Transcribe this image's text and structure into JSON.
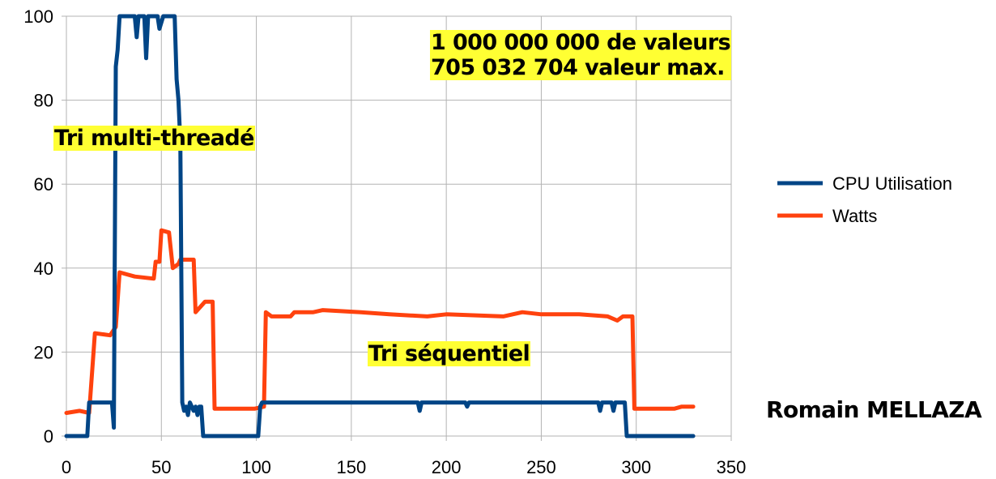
{
  "chart_data": {
    "type": "line",
    "title": "",
    "xlabel": "",
    "ylabel": "",
    "xlim": [
      0,
      350
    ],
    "ylim": [
      0,
      100
    ],
    "x_ticks": [
      0,
      50,
      100,
      150,
      200,
      250,
      300,
      350
    ],
    "y_ticks": [
      0,
      20,
      40,
      60,
      80,
      100
    ],
    "grid": true,
    "legend_position": "right",
    "series": [
      {
        "name": "CPU Utilisation",
        "color": "#004586",
        "points": [
          [
            0,
            0
          ],
          [
            11,
            0
          ],
          [
            12,
            8
          ],
          [
            24,
            8
          ],
          [
            25,
            2
          ],
          [
            26,
            88
          ],
          [
            27,
            92
          ],
          [
            28,
            100
          ],
          [
            36,
            100
          ],
          [
            37,
            95
          ],
          [
            38,
            100
          ],
          [
            41,
            100
          ],
          [
            42,
            90
          ],
          [
            43,
            100
          ],
          [
            48,
            100
          ],
          [
            49,
            97
          ],
          [
            51,
            100
          ],
          [
            57,
            100
          ],
          [
            58,
            85
          ],
          [
            59,
            80
          ],
          [
            60,
            70
          ],
          [
            61,
            8
          ],
          [
            62,
            6
          ],
          [
            63,
            7
          ],
          [
            64,
            5
          ],
          [
            65,
            8
          ],
          [
            67,
            6
          ],
          [
            68,
            7
          ],
          [
            69,
            5
          ],
          [
            70,
            7
          ],
          [
            71,
            7
          ],
          [
            72,
            0
          ],
          [
            101,
            0
          ],
          [
            102,
            7
          ],
          [
            103,
            8
          ],
          [
            185,
            8
          ],
          [
            186,
            6
          ],
          [
            187,
            8
          ],
          [
            210,
            8
          ],
          [
            211,
            7
          ],
          [
            212,
            8
          ],
          [
            280,
            8
          ],
          [
            281,
            6
          ],
          [
            282,
            8
          ],
          [
            287,
            8
          ],
          [
            288,
            6
          ],
          [
            289,
            8
          ],
          [
            294,
            8
          ],
          [
            295,
            0
          ],
          [
            330,
            0
          ]
        ]
      },
      {
        "name": "Watts",
        "color": "#ff420e",
        "points": [
          [
            0,
            5.5
          ],
          [
            7,
            6
          ],
          [
            12,
            5.5
          ],
          [
            15,
            24.5
          ],
          [
            23,
            24
          ],
          [
            26,
            26
          ],
          [
            28,
            39
          ],
          [
            32,
            38.5
          ],
          [
            36,
            38
          ],
          [
            46,
            37.5
          ],
          [
            47,
            41.5
          ],
          [
            49,
            41.5
          ],
          [
            50,
            49
          ],
          [
            54,
            48.5
          ],
          [
            56,
            40
          ],
          [
            59,
            41
          ],
          [
            60,
            42
          ],
          [
            67,
            42
          ],
          [
            68,
            29.5
          ],
          [
            71,
            31
          ],
          [
            73,
            32
          ],
          [
            77,
            32
          ],
          [
            78,
            6.5
          ],
          [
            99,
            6.5
          ],
          [
            104,
            7
          ],
          [
            105,
            29.5
          ],
          [
            108,
            28.5
          ],
          [
            118,
            28.5
          ],
          [
            120,
            29.5
          ],
          [
            130,
            29.5
          ],
          [
            135,
            30
          ],
          [
            155,
            29.5
          ],
          [
            170,
            29
          ],
          [
            190,
            28.5
          ],
          [
            200,
            29
          ],
          [
            230,
            28.5
          ],
          [
            240,
            29.5
          ],
          [
            250,
            29
          ],
          [
            270,
            29
          ],
          [
            285,
            28.5
          ],
          [
            290,
            27.5
          ],
          [
            293,
            28.5
          ],
          [
            298,
            28.5
          ],
          [
            299,
            6.5
          ],
          [
            310,
            6.5
          ],
          [
            320,
            6.5
          ],
          [
            324,
            7
          ],
          [
            330,
            7
          ]
        ]
      }
    ]
  },
  "annotations": {
    "count_line1": "1 000 000 000 de valeurs",
    "count_line2": "705 032 704 valeur max.",
    "multi_threaded": "Tri multi-threadé",
    "sequential": "Tri séquentiel",
    "author": "Romain MELLAZA"
  }
}
